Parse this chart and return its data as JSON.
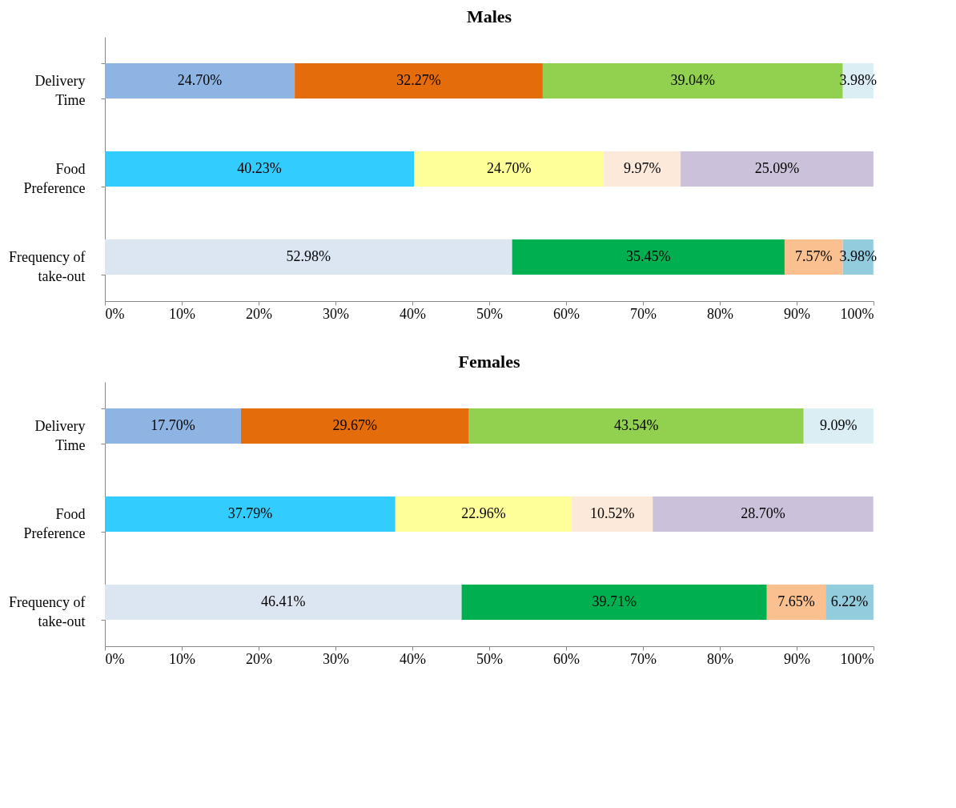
{
  "chart_data": [
    {
      "type": "bar",
      "title": "Males",
      "orientation": "horizontal",
      "stacked": true,
      "categories": [
        "Delivery Time",
        "Food Preference",
        "Frequency of take-out"
      ],
      "xlim": [
        0,
        100
      ],
      "xticks": [
        {
          "value": 0,
          "label": "0%"
        },
        {
          "value": 10,
          "label": "10%"
        },
        {
          "value": 20,
          "label": "20%"
        },
        {
          "value": 30,
          "label": "30%"
        },
        {
          "value": 40,
          "label": "40%"
        },
        {
          "value": 50,
          "label": "50%"
        },
        {
          "value": 60,
          "label": "60%"
        },
        {
          "value": 70,
          "label": "70%"
        },
        {
          "value": 80,
          "label": "80%"
        },
        {
          "value": 90,
          "label": "90%"
        },
        {
          "value": 100,
          "label": "100%"
        }
      ],
      "grid": false,
      "series": [
        {
          "colors": [
            "#8eb4e3",
            "#33ccff",
            "#dce6f2"
          ],
          "values": [
            24.7,
            40.23,
            52.98
          ],
          "value_labels": [
            "24.70%",
            "40.23%",
            "52.98%"
          ]
        },
        {
          "colors": [
            "#e46c0a",
            "#ffff99",
            "#00b050"
          ],
          "values": [
            32.27,
            24.7,
            35.45
          ],
          "value_labels": [
            "32.27%",
            "24.70%",
            "35.45%"
          ]
        },
        {
          "colors": [
            "#92d050",
            "#fde9d9",
            "#fac090"
          ],
          "values": [
            39.04,
            9.97,
            7.57
          ],
          "value_labels": [
            "39.04%",
            "9.97%",
            "7.57%"
          ]
        },
        {
          "colors": [
            "#dbeef4",
            "#ccc1da",
            "#93cddd"
          ],
          "values": [
            3.98,
            25.09,
            3.98
          ],
          "value_labels": [
            "3.98%",
            "25.09%",
            "3.98%"
          ]
        }
      ]
    },
    {
      "type": "bar",
      "title": "Females",
      "orientation": "horizontal",
      "stacked": true,
      "categories": [
        "Delivery Time",
        "Food Preference",
        "Frequency of take-out"
      ],
      "xlim": [
        0,
        100
      ],
      "xticks": [
        {
          "value": 0,
          "label": "0%"
        },
        {
          "value": 10,
          "label": "10%"
        },
        {
          "value": 20,
          "label": "20%"
        },
        {
          "value": 30,
          "label": "30%"
        },
        {
          "value": 40,
          "label": "40%"
        },
        {
          "value": 50,
          "label": "50%"
        },
        {
          "value": 60,
          "label": "60%"
        },
        {
          "value": 70,
          "label": "70%"
        },
        {
          "value": 80,
          "label": "80%"
        },
        {
          "value": 90,
          "label": "90%"
        },
        {
          "value": 100,
          "label": "100%"
        }
      ],
      "grid": false,
      "series": [
        {
          "colors": [
            "#8eb4e3",
            "#33ccff",
            "#dce6f2"
          ],
          "values": [
            17.7,
            37.79,
            46.41
          ],
          "value_labels": [
            "17.70%",
            "37.79%",
            "46.41%"
          ]
        },
        {
          "colors": [
            "#e46c0a",
            "#ffff99",
            "#00b050"
          ],
          "values": [
            29.67,
            22.96,
            39.71
          ],
          "value_labels": [
            "29.67%",
            "22.96%",
            "39.71%"
          ]
        },
        {
          "colors": [
            "#92d050",
            "#fde9d9",
            "#fac090"
          ],
          "values": [
            43.54,
            10.52,
            7.65
          ],
          "value_labels": [
            "43.54%",
            "10.52%",
            "7.65%"
          ]
        },
        {
          "colors": [
            "#dbeef4",
            "#ccc1da",
            "#93cddd"
          ],
          "values": [
            9.09,
            28.7,
            6.22
          ],
          "value_labels": [
            "9.09%",
            "28.70%",
            "6.22%"
          ]
        }
      ]
    }
  ]
}
